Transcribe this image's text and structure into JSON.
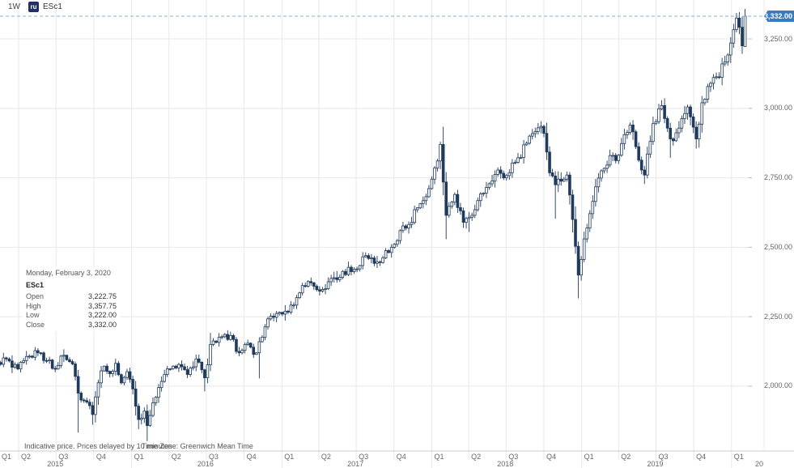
{
  "header": {
    "timeframe": "1W",
    "symbol": "ESc1",
    "symbol_icon": "ru"
  },
  "price_tag": {
    "value": "3,332.00"
  },
  "tooltip": {
    "date": "Monday, February 3, 2020",
    "symbol": "ESc1",
    "rows": [
      {
        "label": "Open",
        "value": "3,222.75"
      },
      {
        "label": "High",
        "value": "3,357.75"
      },
      {
        "label": "Low",
        "value": "3,222.00"
      },
      {
        "label": "Close",
        "value": "3,332.00"
      }
    ]
  },
  "footer": {
    "disclaimer": "Indicative price. Prices delayed by 10 minutes",
    "timezone": "Time Zone: Greenwich Mean Time"
  },
  "colors": {
    "candle": "#1f3a5c",
    "up_body": "#ffffff",
    "grid": "#e8e8e8",
    "axis_line": "#cccccc",
    "dashed_line": "#7fb2d9",
    "tag_bg": "#3a7cc0",
    "tag_text": "#ffffff",
    "axis_text": "#666666"
  },
  "chart_data": {
    "type": "candlestick",
    "symbol": "ESc1",
    "interval": "weekly",
    "title": "",
    "x_range": [
      "2015-02-09",
      "2020-02-03"
    ],
    "y_ticks": [
      3250,
      3000,
      2750,
      2500,
      2250,
      2000
    ],
    "y_tick_labels": [
      "3,250.00",
      "3,000.00",
      "2,750.00",
      "2,500.00",
      "2,250.00",
      "2,000.00"
    ],
    "y_view": [
      1787,
      3390
    ],
    "quarter_labels": [
      "Q1",
      "Q2",
      "Q3",
      "Q4",
      "Q1",
      "Q2",
      "Q3",
      "Q4",
      "Q1",
      "Q2",
      "Q3",
      "Q4",
      "Q1",
      "Q2",
      "Q3",
      "Q4",
      "Q1",
      "Q2",
      "Q3",
      "Q4",
      "Q1"
    ],
    "year_labels": [
      "2015",
      "2016",
      "2017",
      "2018",
      "2019",
      "20"
    ],
    "last_price_line": 3332.0,
    "grid": true,
    "anchors": [
      [
        "2015-02-09",
        2085
      ],
      [
        "2015-03-02",
        2098
      ],
      [
        "2015-03-16",
        2068
      ],
      [
        "2015-03-30",
        2062
      ],
      [
        "2015-04-13",
        2092
      ],
      [
        "2015-04-27",
        2108
      ],
      [
        "2015-05-18",
        2120
      ],
      [
        "2015-06-08",
        2092
      ],
      [
        "2015-06-29",
        2062
      ],
      [
        "2015-07-13",
        2108
      ],
      [
        "2015-07-27",
        2095
      ],
      [
        "2015-08-10",
        2080
      ],
      [
        "2015-08-17",
        2035
      ],
      [
        "2015-08-24",
        1975
      ],
      [
        "2015-09-07",
        1948
      ],
      [
        "2015-09-21",
        1930
      ],
      [
        "2015-09-28",
        1898
      ],
      [
        "2015-10-12",
        2012
      ],
      [
        "2015-10-26",
        2072
      ],
      [
        "2015-11-09",
        2045
      ],
      [
        "2015-11-23",
        2082
      ],
      [
        "2015-12-07",
        2012
      ],
      [
        "2015-12-21",
        2052
      ],
      [
        "2016-01-04",
        1990
      ],
      [
        "2016-01-18",
        1880
      ],
      [
        "2016-02-01",
        1910
      ],
      [
        "2016-02-08",
        1858
      ],
      [
        "2016-02-22",
        1940
      ],
      [
        "2016-03-07",
        1995
      ],
      [
        "2016-03-21",
        2042
      ],
      [
        "2016-04-11",
        2072
      ],
      [
        "2016-04-25",
        2078
      ],
      [
        "2016-05-16",
        2042
      ],
      [
        "2016-06-06",
        2098
      ],
      [
        "2016-06-27",
        2030
      ],
      [
        "2016-07-11",
        2150
      ],
      [
        "2016-08-08",
        2178
      ],
      [
        "2016-09-05",
        2168
      ],
      [
        "2016-09-12",
        2125
      ],
      [
        "2016-10-03",
        2150
      ],
      [
        "2016-10-31",
        2120
      ],
      [
        "2016-11-07",
        2160
      ],
      [
        "2016-12-05",
        2252
      ],
      [
        "2016-12-19",
        2262
      ],
      [
        "2017-01-09",
        2270
      ],
      [
        "2017-01-30",
        2292
      ],
      [
        "2017-02-20",
        2362
      ],
      [
        "2017-03-13",
        2372
      ],
      [
        "2017-04-10",
        2348
      ],
      [
        "2017-05-01",
        2388
      ],
      [
        "2017-05-22",
        2392
      ],
      [
        "2017-06-12",
        2428
      ],
      [
        "2017-07-03",
        2422
      ],
      [
        "2017-07-24",
        2470
      ],
      [
        "2017-08-14",
        2442
      ],
      [
        "2017-09-04",
        2462
      ],
      [
        "2017-09-25",
        2500
      ],
      [
        "2017-10-16",
        2560
      ],
      [
        "2017-11-06",
        2582
      ],
      [
        "2017-11-27",
        2642
      ],
      [
        "2017-12-18",
        2682
      ],
      [
        "2018-01-08",
        2785
      ],
      [
        "2018-01-22",
        2870
      ],
      [
        "2018-02-05",
        2615
      ],
      [
        "2018-02-26",
        2690
      ],
      [
        "2018-03-19",
        2590
      ],
      [
        "2018-04-02",
        2608
      ],
      [
        "2018-04-23",
        2668
      ],
      [
        "2018-05-14",
        2715
      ],
      [
        "2018-06-11",
        2778
      ],
      [
        "2018-07-02",
        2758
      ],
      [
        "2018-07-30",
        2822
      ],
      [
        "2018-08-27",
        2900
      ],
      [
        "2018-09-17",
        2930
      ],
      [
        "2018-10-01",
        2910
      ],
      [
        "2018-10-15",
        2768
      ],
      [
        "2018-10-29",
        2725
      ],
      [
        "2018-11-12",
        2738
      ],
      [
        "2018-11-26",
        2760
      ],
      [
        "2018-12-10",
        2600
      ],
      [
        "2018-12-24",
        2400
      ],
      [
        "2019-01-07",
        2530
      ],
      [
        "2019-01-28",
        2665
      ],
      [
        "2019-02-18",
        2775
      ],
      [
        "2019-03-11",
        2830
      ],
      [
        "2019-03-25",
        2812
      ],
      [
        "2019-04-15",
        2905
      ],
      [
        "2019-04-29",
        2940
      ],
      [
        "2019-05-13",
        2862
      ],
      [
        "2019-06-03",
        2760
      ],
      [
        "2019-06-24",
        2945
      ],
      [
        "2019-07-15",
        3010
      ],
      [
        "2019-08-05",
        2890
      ],
      [
        "2019-08-19",
        2912
      ],
      [
        "2019-09-16",
        3005
      ],
      [
        "2019-10-07",
        2890
      ],
      [
        "2019-10-21",
        3020
      ],
      [
        "2019-11-11",
        3090
      ],
      [
        "2019-12-02",
        3112
      ],
      [
        "2019-12-09",
        3160
      ],
      [
        "2019-12-30",
        3235
      ],
      [
        "2020-01-13",
        3325
      ],
      [
        "2020-01-20",
        3292
      ],
      [
        "2020-01-27",
        3225
      ],
      [
        "2020-02-03",
        3332
      ]
    ],
    "extremes": [
      {
        "d": "2015-08-24",
        "low": 1833
      },
      {
        "d": "2015-09-28",
        "low": 1861
      },
      {
        "d": "2016-01-18",
        "low": 1845
      },
      {
        "d": "2016-02-08",
        "low": 1802
      },
      {
        "d": "2016-06-27",
        "low": 1981
      },
      {
        "d": "2016-11-07",
        "low": 2028
      },
      {
        "d": "2018-01-22",
        "high": 2878
      },
      {
        "d": "2018-02-05",
        "low": 2529
      },
      {
        "d": "2018-04-02",
        "low": 2555
      },
      {
        "d": "2018-09-17",
        "high": 2947
      },
      {
        "d": "2018-10-29",
        "low": 2603
      },
      {
        "d": "2018-12-24",
        "low": 2316
      },
      {
        "d": "2019-06-03",
        "low": 2728
      },
      {
        "d": "2019-07-15",
        "high": 3029
      },
      {
        "d": "2019-08-05",
        "low": 2822
      },
      {
        "d": "2019-10-07",
        "low": 2855
      },
      {
        "d": "2020-01-13",
        "high": 3337
      }
    ],
    "last_candle": {
      "date": "2020-02-03",
      "open": 3222.75,
      "high": 3357.75,
      "low": 3222.0,
      "close": 3332.0
    }
  }
}
